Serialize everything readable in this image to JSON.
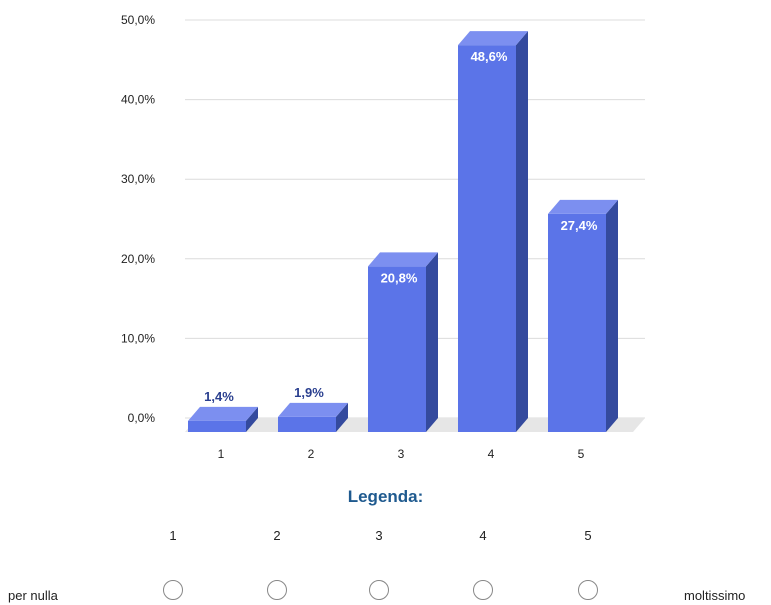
{
  "chart_data": {
    "type": "bar",
    "categories": [
      "1",
      "2",
      "3",
      "4",
      "5"
    ],
    "values": [
      1.4,
      1.9,
      20.8,
      48.6,
      27.4
    ],
    "value_labels": [
      "1,4%",
      "1,9%",
      "20,8%",
      "48,6%",
      "27,4%"
    ],
    "y_ticks": [
      "0,0%",
      "10,0%",
      "20,0%",
      "30,0%",
      "40,0%",
      "50,0%"
    ],
    "ylim": [
      0,
      50
    ],
    "grid": true,
    "colors": {
      "bar_front": "#5b74e8",
      "bar_side": "#344a9e",
      "bar_top": "#7c8ff0",
      "label_dark": "#2a3f8f",
      "label_light": "#ffffff"
    }
  },
  "legend": {
    "title": "Legenda:",
    "scale": [
      "1",
      "2",
      "3",
      "4",
      "5"
    ],
    "low_label": "per nulla",
    "high_label": "moltissimo"
  }
}
